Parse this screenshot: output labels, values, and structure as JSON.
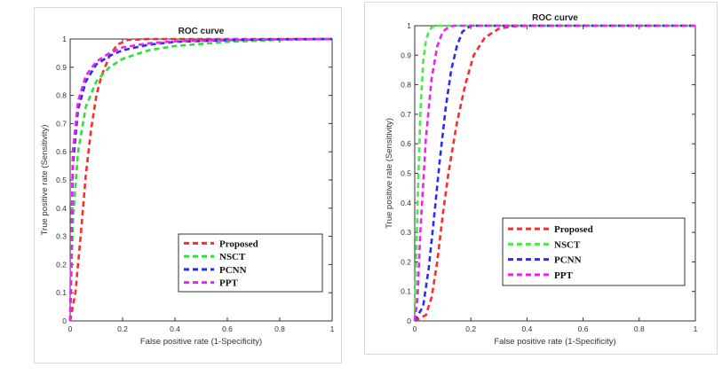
{
  "chart_data": [
    {
      "type": "line",
      "title": "ROC curve",
      "xlabel": "False positive rate (1-Specificity)",
      "ylabel": "True positive rate (Sensitivity)",
      "xlim": [
        0,
        1
      ],
      "ylim": [
        0,
        1
      ],
      "xticks": [
        "0",
        "0.2",
        "0.4",
        "0.6",
        "0.8",
        "1"
      ],
      "yticks": [
        "0",
        "0.1",
        "0.2",
        "0.3",
        "0.4",
        "0.5",
        "0.6",
        "0.7",
        "0.8",
        "0.9",
        "1"
      ],
      "grid": false,
      "legend_position": "bottom-right",
      "series": [
        {
          "name": "Proposed",
          "color": "#ff2a2a",
          "x": [
            0,
            0.02,
            0.04,
            0.06,
            0.08,
            0.1,
            0.12,
            0.15,
            0.18,
            0.22,
            0.3,
            0.4,
            1
          ],
          "y": [
            0,
            0.1,
            0.3,
            0.52,
            0.68,
            0.8,
            0.87,
            0.94,
            0.98,
            0.997,
            1.0,
            1.0,
            1.0
          ]
        },
        {
          "name": "NSCT",
          "color": "#33dd33",
          "x": [
            0,
            0.01,
            0.03,
            0.06,
            0.1,
            0.15,
            0.2,
            0.3,
            0.4,
            0.6,
            0.8,
            1
          ],
          "y": [
            0,
            0.35,
            0.6,
            0.76,
            0.85,
            0.9,
            0.93,
            0.96,
            0.975,
            0.99,
            0.997,
            1.0
          ]
        },
        {
          "name": "PCNN",
          "color": "#2a2aff",
          "x": [
            0,
            0.01,
            0.03,
            0.06,
            0.1,
            0.15,
            0.2,
            0.3,
            0.4,
            0.6,
            0.8,
            1
          ],
          "y": [
            0,
            0.55,
            0.75,
            0.85,
            0.91,
            0.94,
            0.96,
            0.98,
            0.99,
            0.996,
            0.999,
            1.0
          ]
        },
        {
          "name": "PPT",
          "color": "#ee22ee",
          "x": [
            0,
            0.01,
            0.03,
            0.06,
            0.1,
            0.15,
            0.2,
            0.3,
            0.4,
            0.6,
            0.8,
            1
          ],
          "y": [
            0,
            0.6,
            0.78,
            0.87,
            0.92,
            0.95,
            0.97,
            0.985,
            0.992,
            0.997,
            0.999,
            1.0
          ]
        }
      ]
    },
    {
      "type": "line",
      "title": "ROC curve",
      "xlabel": "False positive rate (1-Specificity)",
      "ylabel": "True positive rate (Sensitivity)",
      "xlim": [
        0,
        1
      ],
      "ylim": [
        0,
        1
      ],
      "xticks": [
        "0",
        "0.2",
        "0.4",
        "0.6",
        "0.8",
        "1"
      ],
      "yticks": [
        "0",
        "0.1",
        "0.2",
        "0.3",
        "0.4",
        "0.5",
        "0.6",
        "0.7",
        "0.8",
        "0.9",
        "1"
      ],
      "grid": false,
      "legend_position": "bottom-right",
      "series": [
        {
          "name": "Proposed",
          "color": "#ff2a2a",
          "x": [
            0,
            0.04,
            0.06,
            0.08,
            0.1,
            0.12,
            0.15,
            0.18,
            0.21,
            0.25,
            0.3,
            0.35,
            0.4,
            1
          ],
          "y": [
            0,
            0.02,
            0.08,
            0.2,
            0.36,
            0.5,
            0.67,
            0.8,
            0.9,
            0.96,
            0.99,
            0.998,
            1.0,
            1.0
          ]
        },
        {
          "name": "NSCT",
          "color": "#44ee44",
          "x": [
            0,
            0.01,
            0.02,
            0.03,
            0.04,
            0.05,
            0.06,
            0.08,
            0.1,
            1
          ],
          "y": [
            0,
            0.4,
            0.7,
            0.88,
            0.95,
            0.98,
            0.995,
            1.0,
            1.0,
            1.0
          ]
        },
        {
          "name": "PCNN",
          "color": "#2a2aff",
          "x": [
            0,
            0.03,
            0.05,
            0.07,
            0.09,
            0.11,
            0.13,
            0.15,
            0.17,
            0.2,
            0.25,
            1
          ],
          "y": [
            0,
            0.05,
            0.18,
            0.36,
            0.55,
            0.72,
            0.85,
            0.93,
            0.98,
            1.0,
            1.0,
            1.0
          ]
        },
        {
          "name": "PPT",
          "color": "#ee22ee",
          "x": [
            0,
            0.01,
            0.02,
            0.04,
            0.06,
            0.08,
            0.1,
            0.12,
            0.14,
            0.16,
            1
          ],
          "y": [
            0,
            0.08,
            0.3,
            0.62,
            0.82,
            0.93,
            0.98,
            0.995,
            1.0,
            1.0,
            1.0
          ]
        }
      ]
    }
  ]
}
